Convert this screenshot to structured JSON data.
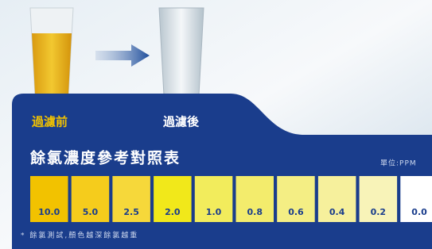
{
  "labels": {
    "before": "過濾前",
    "after": "過濾後"
  },
  "title": "餘氯濃度參考對照表",
  "unit": "單位:PPM",
  "scale": [
    {
      "label": "10.0",
      "color": "#f2c200"
    },
    {
      "label": "5.0",
      "color": "#f5cc1c"
    },
    {
      "label": "2.5",
      "color": "#f6d83a"
    },
    {
      "label": "2.0",
      "color": "#f1e81a"
    },
    {
      "label": "1.0",
      "color": "#f2ec5c"
    },
    {
      "label": "0.8",
      "color": "#f3ec6c"
    },
    {
      "label": "0.6",
      "color": "#f4ee84"
    },
    {
      "label": "0.4",
      "color": "#f6f09c"
    },
    {
      "label": "0.2",
      "color": "#f8f3b8"
    },
    {
      "label": "0.0",
      "color": "#ffffff"
    }
  ],
  "note": "* 餘氯測試,顏色越深餘氯越重"
}
